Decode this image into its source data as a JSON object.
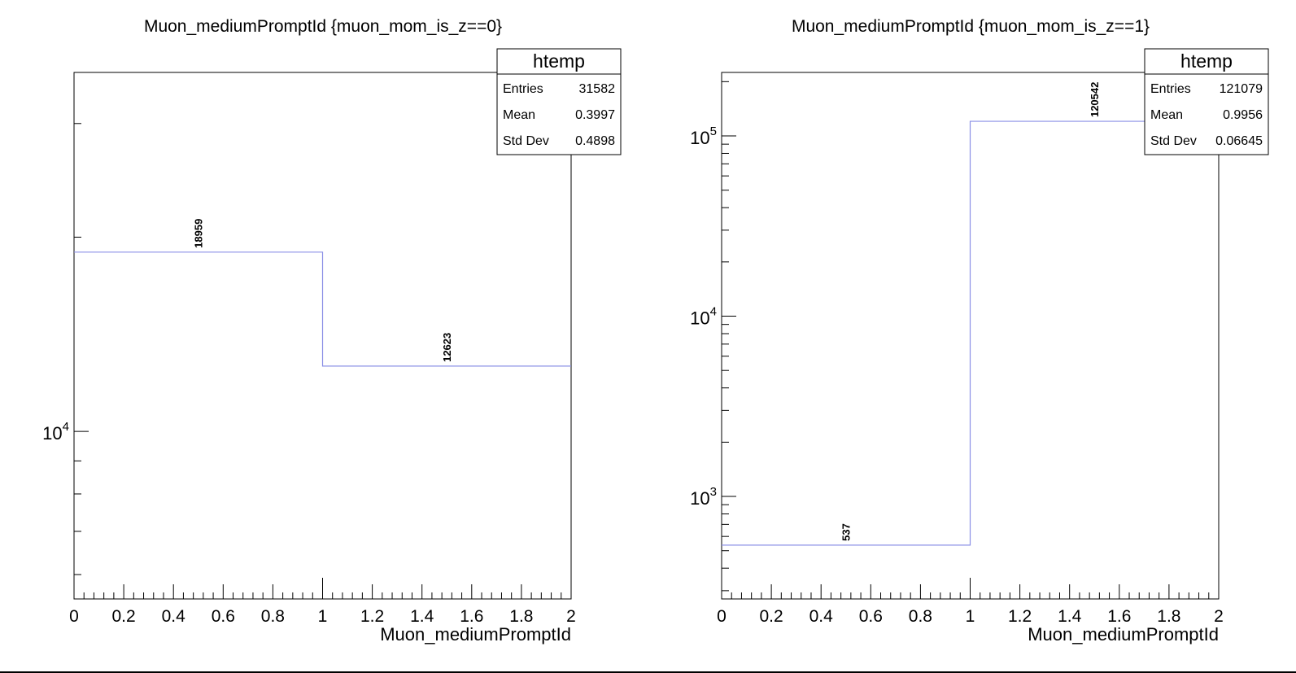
{
  "chart_data": [
    {
      "type": "histogram",
      "title": "Muon_mediumPromptId {muon_mom_is_z==0}",
      "xlabel": "Muon_mediumPromptId",
      "ylabel": "",
      "xlim": [
        0,
        2
      ],
      "ylim": [
        5500,
        36000
      ],
      "yscale": "log",
      "x_ticks": [
        "0",
        "0.2",
        "0.4",
        "0.6",
        "0.8",
        "1",
        "1.2",
        "1.4",
        "1.6",
        "1.8",
        "2"
      ],
      "y_tick_labels": [
        {
          "value": 10000,
          "base": "10",
          "exp": "4"
        }
      ],
      "bin_edges": [
        0,
        1,
        2
      ],
      "values": [
        18959,
        12623
      ],
      "data_labels": [
        "18959",
        "12623"
      ],
      "line_color": "#8a8fe6",
      "stats": {
        "name": "htemp",
        "rows": [
          {
            "label": "Entries",
            "value": "31582"
          },
          {
            "label": "Mean",
            "value": "0.3997"
          },
          {
            "label": "Std Dev",
            "value": "0.4898"
          }
        ]
      }
    },
    {
      "type": "histogram",
      "title": "Muon_mediumPromptId {muon_mom_is_z==1}",
      "xlabel": "Muon_mediumPromptId",
      "ylabel": "",
      "xlim": [
        0,
        2
      ],
      "ylim": [
        270,
        225000
      ],
      "yscale": "log",
      "x_ticks": [
        "0",
        "0.2",
        "0.4",
        "0.6",
        "0.8",
        "1",
        "1.2",
        "1.4",
        "1.6",
        "1.8",
        "2"
      ],
      "y_tick_labels": [
        {
          "value": 1000,
          "base": "10",
          "exp": "3"
        },
        {
          "value": 10000,
          "base": "10",
          "exp": "4"
        },
        {
          "value": 100000,
          "base": "10",
          "exp": "5"
        }
      ],
      "bin_edges": [
        0,
        1,
        2
      ],
      "values": [
        537,
        120542
      ],
      "data_labels": [
        "537",
        "120542"
      ],
      "line_color": "#8a8fe6",
      "stats": {
        "name": "htemp",
        "rows": [
          {
            "label": "Entries",
            "value": "121079"
          },
          {
            "label": "Mean",
            "value": "0.9956"
          },
          {
            "label": "Std Dev",
            "value": "0.06645"
          }
        ]
      }
    }
  ]
}
